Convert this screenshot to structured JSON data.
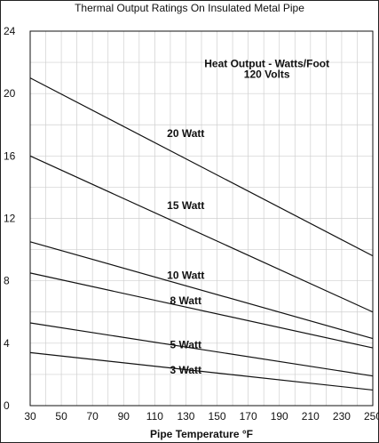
{
  "chart_data": {
    "type": "line",
    "title": "Thermal Output Ratings On Insulated Metal Pipe",
    "xlabel": "Pipe Temperature °F",
    "ylabel": "",
    "xlim": [
      30,
      250
    ],
    "ylim": [
      0,
      24
    ],
    "xticks": [
      30,
      50,
      70,
      90,
      110,
      130,
      150,
      170,
      190,
      210,
      230,
      250
    ],
    "yticks": [
      0,
      4,
      8,
      12,
      16,
      20,
      24
    ],
    "grid": true,
    "annotation": [
      "Heat Output - Watts/Foot",
      "120 Volts"
    ],
    "series": [
      {
        "name": "20 Watt",
        "x": [
          30,
          250
        ],
        "y": [
          21,
          9.6
        ]
      },
      {
        "name": "15 Watt",
        "x": [
          30,
          250
        ],
        "y": [
          16,
          6
        ]
      },
      {
        "name": "10 Watt",
        "x": [
          30,
          250
        ],
        "y": [
          10.5,
          4.3
        ]
      },
      {
        "name": "8 Watt",
        "x": [
          30,
          250
        ],
        "y": [
          8.5,
          3.7
        ]
      },
      {
        "name": "5 Watt",
        "x": [
          30,
          250
        ],
        "y": [
          5.3,
          1.9
        ]
      },
      {
        "name": "3 Watt",
        "x": [
          30,
          250
        ],
        "y": [
          3.4,
          1.0
        ]
      }
    ]
  }
}
